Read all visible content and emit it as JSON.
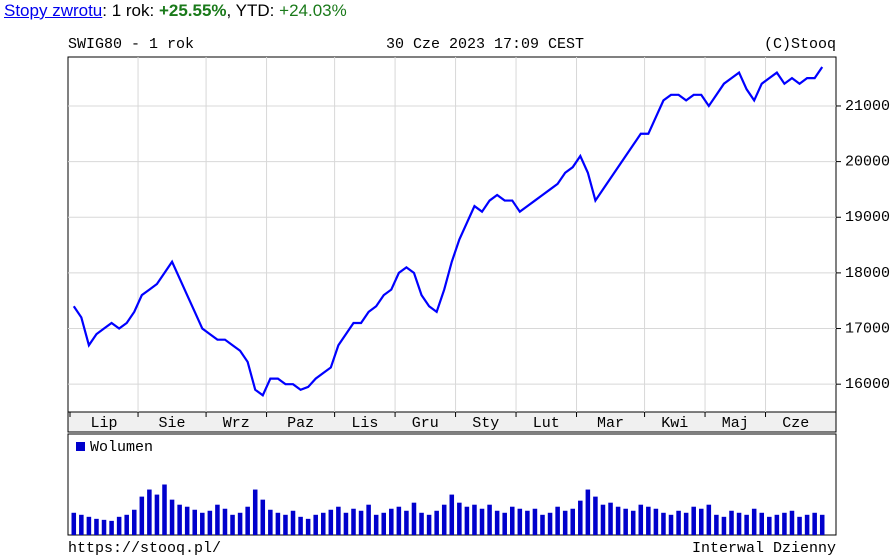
{
  "header": {
    "link": "Stopy zwrotu",
    "period_label": ": 1 rok: ",
    "period_return": "+25.55%",
    "ytd_label": ", YTD: ",
    "ytd_return": "+24.03%"
  },
  "footer": {
    "url": "https://stooq.pl/",
    "interval": "Interwal Dzienny"
  },
  "chart_data": [
    {
      "type": "line",
      "title": "SWIG80 - 1 rok",
      "subtitle": "30 Cze 2023 17:09 CEST",
      "source": "(C)Stooq",
      "series": [
        {
          "name": "SWIG80",
          "color": "#0000ff",
          "values": [
            17400,
            17200,
            16700,
            16900,
            17000,
            17100,
            17000,
            17100,
            17300,
            17600,
            17700,
            17800,
            18000,
            18200,
            17900,
            17600,
            17300,
            17000,
            16900,
            16800,
            16800,
            16700,
            16600,
            16400,
            15900,
            15800,
            16100,
            16100,
            16000,
            16000,
            15900,
            15950,
            16100,
            16200,
            16300,
            16700,
            16900,
            17100,
            17100,
            17300,
            17400,
            17600,
            17700,
            18000,
            18100,
            18000,
            17600,
            17400,
            17300,
            17700,
            18200,
            18600,
            18900,
            19200,
            19100,
            19300,
            19400,
            19300,
            19300,
            19100,
            19200,
            19300,
            19400,
            19500,
            19600,
            19800,
            19900,
            20100,
            19800,
            19300,
            19500,
            19700,
            19900,
            20100,
            20300,
            20500,
            20500,
            20800,
            21100,
            21200,
            21200,
            21100,
            21200,
            21200,
            21000,
            21200,
            21400,
            21500,
            21600,
            21300,
            21100,
            21400,
            21500,
            21600,
            21400,
            21500,
            21400,
            21500,
            21500,
            21700
          ]
        }
      ],
      "xticks": [
        {
          "value": 0,
          "label": "Lip"
        },
        {
          "value": 9,
          "label": "Sie"
        },
        {
          "value": 18,
          "label": "Wrz"
        },
        {
          "value": 26,
          "label": "Paz"
        },
        {
          "value": 35,
          "label": "Lis"
        },
        {
          "value": 43,
          "label": "Gru"
        },
        {
          "value": 51,
          "label": "Sty"
        },
        {
          "value": 59,
          "label": "Lut"
        },
        {
          "value": 67,
          "label": "Mar"
        },
        {
          "value": 76,
          "label": "Kwi"
        },
        {
          "value": 84,
          "label": "Maj"
        },
        {
          "value": 92,
          "label": "Cze"
        }
      ],
      "ylim": [
        15500,
        21880
      ],
      "yticks": [
        16000,
        17000,
        18000,
        19000,
        20000,
        21000
      ],
      "grid": true
    },
    {
      "type": "bar",
      "series": [
        {
          "name": "Wolumen",
          "color": "#0000cc",
          "values": [
            22,
            20,
            18,
            16,
            15,
            14,
            18,
            20,
            25,
            38,
            45,
            40,
            50,
            35,
            30,
            28,
            25,
            22,
            24,
            30,
            26,
            20,
            22,
            28,
            45,
            35,
            25,
            22,
            20,
            24,
            18,
            16,
            20,
            22,
            25,
            28,
            22,
            26,
            24,
            30,
            20,
            22,
            26,
            28,
            24,
            32,
            22,
            20,
            24,
            30,
            40,
            32,
            28,
            30,
            26,
            30,
            24,
            22,
            28,
            26,
            24,
            26,
            20,
            22,
            28,
            24,
            26,
            34,
            45,
            38,
            30,
            32,
            28,
            26,
            24,
            30,
            28,
            26,
            22,
            20,
            24,
            22,
            28,
            26,
            30,
            20,
            18,
            24,
            22,
            20,
            26,
            22,
            18,
            20,
            22,
            24,
            18,
            20,
            22,
            20
          ]
        }
      ],
      "ylim": [
        0,
        100
      ],
      "legend": "top-left"
    }
  ]
}
